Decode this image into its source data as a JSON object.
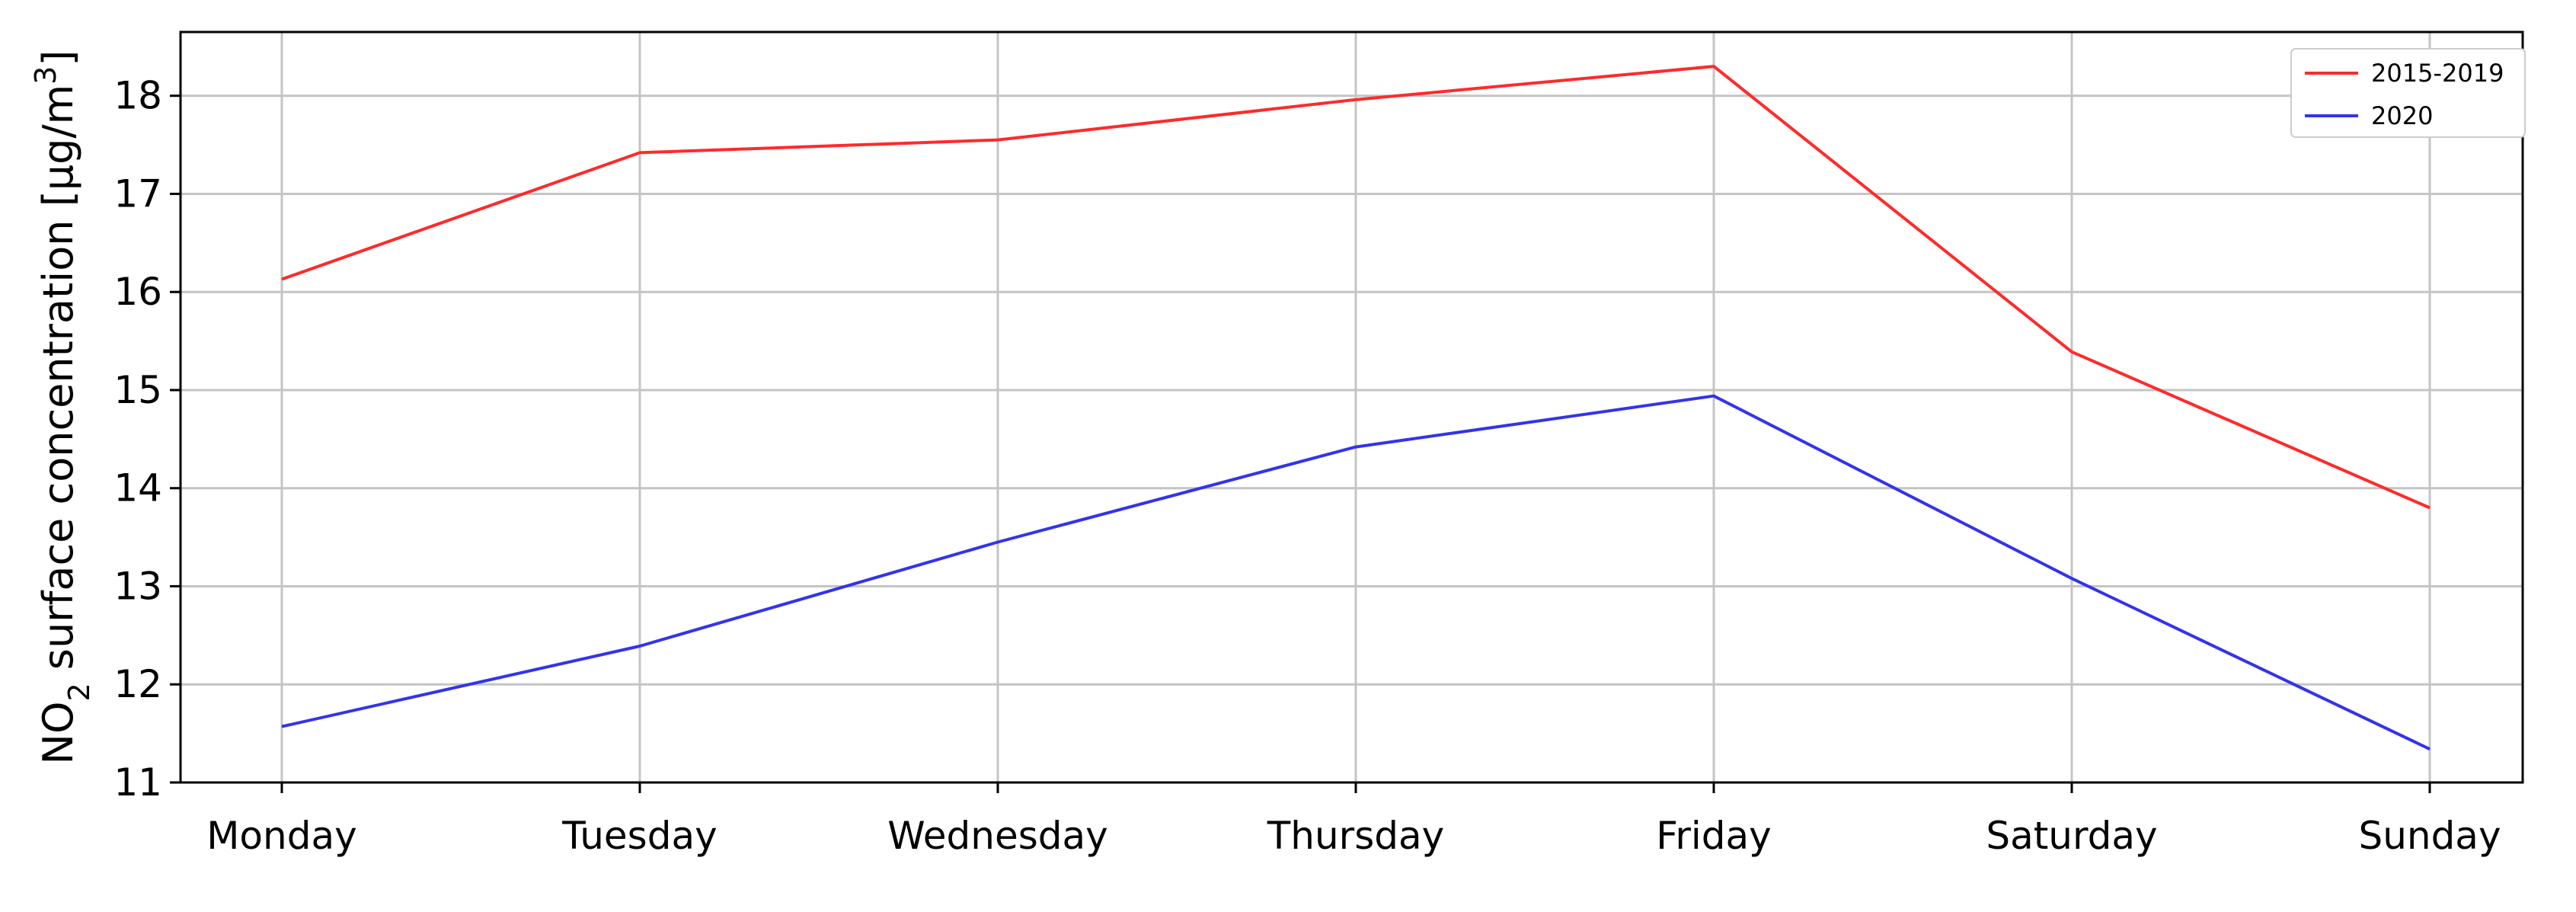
{
  "chart_data": {
    "type": "line",
    "categories": [
      "Monday",
      "Tuesday",
      "Wednesday",
      "Thursday",
      "Friday",
      "Saturday",
      "Sunday"
    ],
    "series": [
      {
        "name": "2015-2019",
        "color": "#ff2a2a",
        "values": [
          16.13,
          17.42,
          17.55,
          17.96,
          18.3,
          15.39,
          13.8
        ]
      },
      {
        "name": "2020",
        "color": "#3333ee",
        "values": [
          11.57,
          12.39,
          13.45,
          14.42,
          14.94,
          13.08,
          11.34
        ]
      }
    ],
    "ylabel": {
      "prefix": "NO",
      "subscript": "2",
      "middle": " surface concentration [µg/m",
      "superscript": "3",
      "suffix": "]"
    },
    "yticks": [
      "11",
      "12",
      "13",
      "14",
      "15",
      "16",
      "17",
      "18"
    ],
    "ylim": [
      11,
      18.65
    ],
    "grid": true,
    "legend_position": "top-right"
  }
}
